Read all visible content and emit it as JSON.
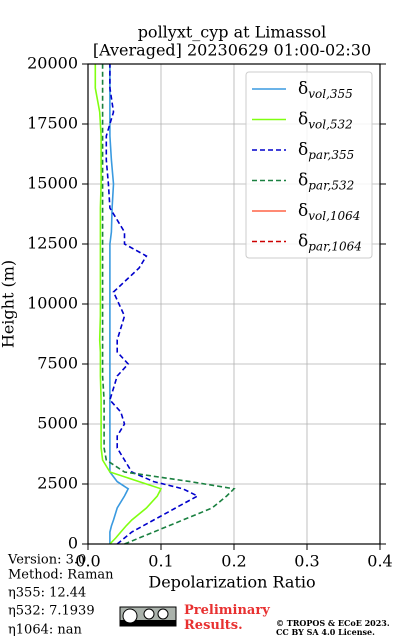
{
  "chart_data": {
    "type": "line",
    "title": "pollyxt_cyp at Limassol",
    "subtitle": "[Averaged] 20230629 01:00-02:30",
    "x_label": "Depolarization Ratio",
    "y_label": "Height (m)",
    "xlim": [
      0,
      0.4
    ],
    "ylim": [
      0,
      20000
    ],
    "xticks": [
      {
        "value": 0,
        "label": "0.0"
      },
      0.1,
      0.2,
      0.3,
      0.4
    ],
    "yticks": [
      0,
      2500,
      5000,
      7500,
      10000,
      12500,
      15000,
      17500,
      20000
    ],
    "grid": true,
    "legend": "upper right",
    "y": [
      0,
      250,
      500,
      750,
      1000,
      1500,
      2000,
      2300,
      2600,
      3000,
      3500,
      4000,
      4500,
      5000,
      5500,
      6000,
      7000,
      7500,
      8000,
      8500,
      9500,
      10500,
      11500,
      12000,
      12500,
      13000,
      14000,
      15000,
      16000,
      17000,
      18000,
      19000,
      20000
    ],
    "series": [
      {
        "name": "δvol,355",
        "color": "#3a9ae0",
        "dashed": false,
        "values": [
          0.03,
          0.03,
          0.03,
          0.032,
          0.035,
          0.04,
          0.05,
          0.055,
          0.04,
          0.03,
          0.03,
          0.03,
          0.03,
          0.03,
          0.03,
          0.03,
          0.03,
          0.03,
          0.03,
          0.03,
          0.03,
          0.03,
          0.03,
          0.03,
          0.03,
          0.032,
          0.033,
          0.035,
          0.032,
          0.03,
          0.03,
          0.03,
          0.03
        ]
      },
      {
        "name": "δvol,532",
        "color": "#80ff10",
        "dashed": false,
        "values": [
          0.03,
          0.038,
          0.045,
          0.052,
          0.06,
          0.08,
          0.095,
          0.1,
          0.07,
          0.03,
          0.02,
          0.018,
          0.018,
          0.018,
          0.018,
          0.018,
          0.017,
          0.017,
          0.017,
          0.016,
          0.017,
          0.017,
          0.017,
          0.017,
          0.017,
          0.017,
          0.017,
          0.018,
          0.018,
          0.018,
          0.016,
          0.01,
          0.01
        ]
      },
      {
        "name": "δpar,355",
        "color": "#0000cc",
        "dashed": true,
        "values": [
          0.04,
          0.05,
          0.06,
          0.075,
          0.09,
          0.12,
          0.15,
          0.13,
          0.09,
          0.06,
          0.05,
          0.04,
          0.04,
          0.05,
          0.045,
          0.03,
          0.04,
          0.055,
          0.04,
          0.04,
          0.05,
          0.035,
          0.07,
          0.08,
          0.05,
          0.05,
          0.03,
          0.028,
          0.025,
          0.025,
          0.035,
          0.03,
          0.03
        ]
      },
      {
        "name": "δpar,532",
        "color": "#1a8040",
        "dashed": true,
        "values": [
          0.05,
          0.07,
          0.09,
          0.11,
          0.13,
          0.17,
          0.19,
          0.2,
          0.14,
          0.05,
          0.025,
          0.022,
          0.022,
          0.022,
          0.022,
          0.022,
          0.02,
          0.02,
          0.02,
          0.02,
          0.02,
          0.02,
          0.02,
          0.02,
          0.02,
          0.02,
          0.02,
          0.02,
          0.02,
          0.02,
          0.02,
          0.02,
          0.02
        ]
      },
      {
        "name": "δvol,1064",
        "color": "#ff6347",
        "dashed": false,
        "values": [
          null,
          null,
          null,
          null,
          null,
          null,
          null,
          null,
          null,
          null,
          null,
          null,
          null,
          null,
          null,
          null,
          null,
          null,
          null,
          null,
          null,
          null,
          null,
          null,
          null,
          null,
          null,
          null,
          null,
          null,
          null,
          null,
          null
        ]
      },
      {
        "name": "δpar,1064",
        "color": "#cc0000",
        "dashed": true,
        "values": [
          null,
          null,
          null,
          null,
          null,
          null,
          null,
          null,
          null,
          null,
          null,
          null,
          null,
          null,
          null,
          null,
          null,
          null,
          null,
          null,
          null,
          null,
          null,
          null,
          null,
          null,
          null,
          null,
          null,
          null,
          null,
          null,
          null
        ]
      }
    ],
    "notes": [
      "Version: 3.0",
      "Method: Raman",
      "η355:  12.44",
      "η532: 7.1939",
      "η1064:    nan"
    ],
    "preliminary": "Preliminary Results.",
    "copyright": [
      "© TROPOS & ECoE 2023.",
      "CC BY SA 4.0 License."
    ]
  }
}
